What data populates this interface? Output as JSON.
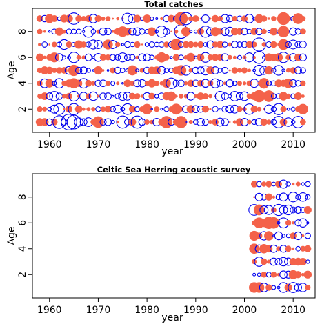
{
  "colors": {
    "positive": "#f4624a",
    "negative": "#0000ee",
    "frame": "#000000"
  },
  "chart_data": [
    {
      "type": "scatter",
      "encoding": "bubble residuals: filled red = positive, open blue = negative, size = magnitude",
      "title": "Total catches",
      "xlabel": "year",
      "ylabel": "Age",
      "xlim": [
        1956.5,
        2014.5
      ],
      "ylim": [
        0.2,
        9.8
      ],
      "xticks": [
        "1960",
        "1970",
        "1980",
        "1990",
        "2000",
        "2010"
      ],
      "yticks": [
        "2",
        "4",
        "6",
        "8"
      ],
      "x_range": [
        1958,
        2012
      ],
      "ages": [
        1,
        2,
        3,
        4,
        5,
        6,
        7,
        8,
        9
      ],
      "points": [
        {
          "x": 1962,
          "y": 1,
          "v": -2.2
        },
        {
          "x": 1964,
          "y": 1,
          "v": -3.3
        },
        {
          "x": 1965,
          "y": 1,
          "v": -2.6
        },
        {
          "x": 1970,
          "y": 1,
          "v": 1.8
        },
        {
          "x": 1975,
          "y": 1,
          "v": -2.0
        },
        {
          "x": 1978,
          "y": 1,
          "v": -2.0
        },
        {
          "x": 1984,
          "y": 1,
          "v": 2.0
        },
        {
          "x": 1987,
          "y": 1,
          "v": 2.0
        },
        {
          "x": 2007,
          "y": 1,
          "v": -1.8
        },
        {
          "x": 2011,
          "y": 1,
          "v": -1.8
        },
        {
          "x": 1962,
          "y": 2,
          "v": -1.6
        },
        {
          "x": 1965,
          "y": 2,
          "v": -1.7
        },
        {
          "x": 1976,
          "y": 2,
          "v": -1.6
        },
        {
          "x": 1980,
          "y": 2,
          "v": 1.5
        },
        {
          "x": 1986,
          "y": 2,
          "v": 1.6
        },
        {
          "x": 2001,
          "y": 2,
          "v": -1.5
        },
        {
          "x": 2007,
          "y": 2,
          "v": -1.7
        },
        {
          "x": 2012,
          "y": 2,
          "v": 1.5
        },
        {
          "x": 1961,
          "y": 3,
          "v": -1.2
        },
        {
          "x": 1965,
          "y": 3,
          "v": -1.3
        },
        {
          "x": 1985,
          "y": 3,
          "v": 1.2
        },
        {
          "x": 2003,
          "y": 3,
          "v": 2.0
        },
        {
          "x": 2005,
          "y": 3,
          "v": 1.8
        },
        {
          "x": 1998,
          "y": 3,
          "v": -1.2
        },
        {
          "x": 1965,
          "y": 4,
          "v": 1.4
        },
        {
          "x": 1967,
          "y": 4,
          "v": -1.2
        },
        {
          "x": 1985,
          "y": 4,
          "v": -1.5
        },
        {
          "x": 2004,
          "y": 4,
          "v": 1.5
        },
        {
          "x": 2009,
          "y": 4,
          "v": 1.2
        },
        {
          "x": 1965,
          "y": 5,
          "v": 1.7
        },
        {
          "x": 1977,
          "y": 5,
          "v": 1.4
        },
        {
          "x": 1987,
          "y": 5,
          "v": 1.5
        },
        {
          "x": 2003,
          "y": 5,
          "v": -1.5
        },
        {
          "x": 2007,
          "y": 5,
          "v": -1.3
        },
        {
          "x": 1961,
          "y": 6,
          "v": 1.3
        },
        {
          "x": 1965,
          "y": 6,
          "v": -1.5
        },
        {
          "x": 1983,
          "y": 6,
          "v": 1.4
        },
        {
          "x": 1992,
          "y": 6,
          "v": -1.3
        },
        {
          "x": 2003,
          "y": 6,
          "v": -2.0
        },
        {
          "x": 2008,
          "y": 6,
          "v": -1.5
        },
        {
          "x": 1963,
          "y": 7,
          "v": -1.3
        },
        {
          "x": 1972,
          "y": 7,
          "v": 1.3
        },
        {
          "x": 1986,
          "y": 7,
          "v": 1.8
        },
        {
          "x": 2003,
          "y": 7,
          "v": -2.4
        },
        {
          "x": 2008,
          "y": 7,
          "v": 1.6
        },
        {
          "x": 1968,
          "y": 8,
          "v": -1.7
        },
        {
          "x": 1975,
          "y": 8,
          "v": 1.5
        },
        {
          "x": 1983,
          "y": 8,
          "v": -1.7
        },
        {
          "x": 1987,
          "y": 8,
          "v": -2.5
        },
        {
          "x": 1992,
          "y": 8,
          "v": -1.7
        },
        {
          "x": 2008,
          "y": 8,
          "v": 1.8
        },
        {
          "x": 1965,
          "y": 9,
          "v": -1.8
        },
        {
          "x": 1976,
          "y": 9,
          "v": -1.6
        },
        {
          "x": 1987,
          "y": 9,
          "v": 2.4
        },
        {
          "x": 1988,
          "y": 9,
          "v": -2.0
        },
        {
          "x": 2008,
          "y": 9,
          "v": 2.2
        },
        {
          "x": 2011,
          "y": 9,
          "v": 1.6
        }
      ]
    },
    {
      "type": "scatter",
      "encoding": "bubble residuals: filled red = positive, open blue = negative, size = magnitude",
      "title": "Celtic Sea Herring acoustic survey",
      "xlabel": "year",
      "ylabel": "Age",
      "xlim": [
        1956.5,
        2014.5
      ],
      "ylim": [
        0.2,
        9.8
      ],
      "xticks": [
        "1960",
        "1970",
        "1980",
        "1990",
        "2000",
        "2010"
      ],
      "yticks": [
        "2",
        "4",
        "6",
        "8"
      ],
      "x_range": [
        2002,
        2013
      ],
      "ages": [
        1,
        2,
        3,
        4,
        5,
        6,
        7,
        8,
        9
      ],
      "points": [
        {
          "x": 2002,
          "y": 1,
          "v": 1.5
        },
        {
          "x": 2003,
          "y": 1,
          "v": 1.5
        },
        {
          "x": 2008,
          "y": 1,
          "v": -1.3
        },
        {
          "x": 2010,
          "y": 1,
          "v": -1.4
        },
        {
          "x": 2012,
          "y": 1,
          "v": -1.0
        },
        {
          "x": 2003,
          "y": 3,
          "v": -1.2
        },
        {
          "x": 2008,
          "y": 3,
          "v": -1.0
        },
        {
          "x": 2002,
          "y": 4,
          "v": 1.4
        },
        {
          "x": 2004,
          "y": 4,
          "v": 1.2
        },
        {
          "x": 2002,
          "y": 5,
          "v": 1.3
        },
        {
          "x": 2005,
          "y": 5,
          "v": 1.2
        },
        {
          "x": 2003,
          "y": 6,
          "v": 1.6
        },
        {
          "x": 2005,
          "y": 6,
          "v": 2.0
        },
        {
          "x": 2006,
          "y": 6,
          "v": 1.8
        },
        {
          "x": 2008,
          "y": 6,
          "v": -1.4
        },
        {
          "x": 2012,
          "y": 6,
          "v": -1.0
        },
        {
          "x": 2002,
          "y": 7,
          "v": -1.6
        },
        {
          "x": 2003,
          "y": 7,
          "v": 1.6
        },
        {
          "x": 2007,
          "y": 7,
          "v": -1.7
        },
        {
          "x": 2009,
          "y": 7,
          "v": -1.3
        },
        {
          "x": 2010,
          "y": 8,
          "v": -1.3
        },
        {
          "x": 2012,
          "y": 8,
          "v": -1.0
        }
      ]
    }
  ]
}
